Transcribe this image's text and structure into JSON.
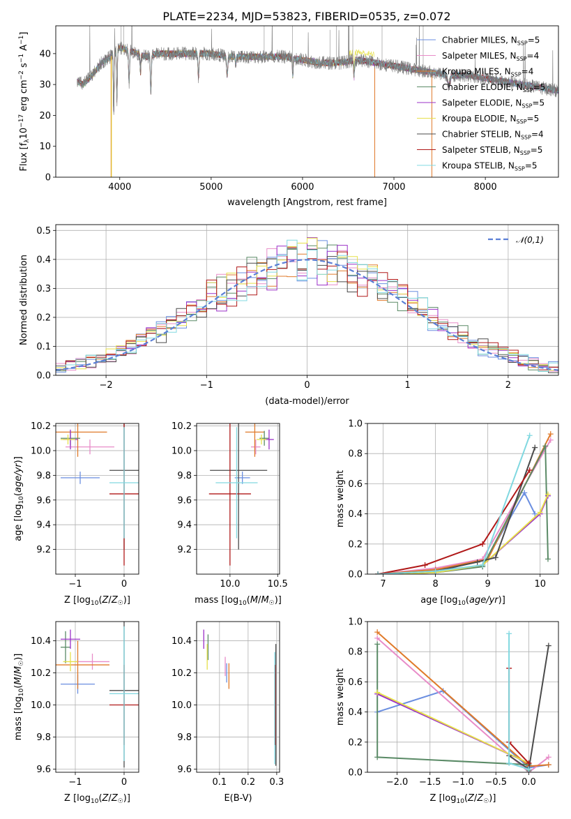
{
  "title": "PLATE=2234, MJD=53823, FIBERID=0535, z=0.072",
  "colors": {
    "Chabrier MILES": "#6a8ee0",
    "Salpeter MILES": "#e88cc8",
    "Kroupa MILES": "#e07a2a",
    "Chabrier ELODIE": "#5a8a66",
    "Salpeter ELODIE": "#9b30c8",
    "Kroupa ELODIE": "#e6e04a",
    "Chabrier STELIB": "#4a4a4a",
    "Salpeter STELIB": "#b01818",
    "Kroupa STELIB": "#80d8e0"
  },
  "chart_data": [
    {
      "id": "spectrum",
      "type": "line",
      "title": "PLATE=2234, MJD=53823, FIBERID=0535, z=0.072",
      "xlabel": "wavelength [Angstrom, rest frame]",
      "ylabel": "Flux [fλ10⁻¹⁷ erg cm⁻² s⁻¹ A⁻¹]",
      "xlim": [
        3300,
        8800
      ],
      "ylim": [
        0,
        49
      ],
      "xticks": [
        4000,
        5000,
        6000,
        7000,
        8000
      ],
      "yticks": [
        0,
        10,
        20,
        30,
        40
      ],
      "grid": false,
      "legend_position": "top-right",
      "continuum": {
        "x": [
          3530,
          3600,
          3700,
          3800,
          3900,
          4000,
          4100,
          4200,
          4300,
          4400,
          4500,
          4700,
          5000,
          5200,
          5500,
          5800,
          6000,
          6200,
          6400,
          6600,
          6800,
          7000,
          7200,
          7400,
          7600,
          7800,
          8000,
          8200,
          8400,
          8600,
          8800
        ],
        "y": [
          31,
          30,
          33,
          37,
          39,
          42,
          41,
          40,
          39,
          40,
          40,
          40,
          40,
          39,
          39,
          39,
          38,
          37,
          37,
          38,
          37,
          36,
          35,
          34,
          33,
          33,
          32,
          31,
          30,
          29,
          28
        ]
      },
      "series": [
        {
          "name": "Chabrier MILES, N_SSP=5",
          "legend_text": "Chabrier MILES, N",
          "sub": "SSP",
          "suffix": "=5",
          "color": "#6a8ee0"
        },
        {
          "name": "Salpeter MILES, N_SSP=4",
          "legend_text": "Salpeter MILES, N",
          "sub": "SSP",
          "suffix": "=4",
          "color": "#e88cc8"
        },
        {
          "name": "Kroupa MILES, N_SSP=4",
          "legend_text": "Kroupa MILES, N",
          "sub": "SSP",
          "suffix": "=4",
          "color": "#e07a2a"
        },
        {
          "name": "Chabrier ELODIE, N_SSP=5",
          "legend_text": "Chabrier ELODIE, N",
          "sub": "SSP",
          "suffix": "=5",
          "color": "#5a8a66"
        },
        {
          "name": "Salpeter ELODIE, N_SSP=5",
          "legend_text": "Salpeter ELODIE, N",
          "sub": "SSP",
          "suffix": "=5",
          "color": "#9b30c8"
        },
        {
          "name": "Kroupa ELODIE, N_SSP=5",
          "legend_text": "Kroupa ELODIE, N",
          "sub": "SSP",
          "suffix": "=5",
          "color": "#e6e04a"
        },
        {
          "name": "Chabrier STELIB, N_SSP=4",
          "legend_text": "Chabrier STELIB, N",
          "sub": "SSP",
          "suffix": "=4",
          "color": "#4a4a4a"
        },
        {
          "name": "Salpeter STELIB, N_SSP=5",
          "legend_text": "Salpeter STELIB, N",
          "sub": "SSP",
          "suffix": "=5",
          "color": "#b01818"
        },
        {
          "name": "Kroupa STELIB, N_SSP=5",
          "legend_text": "Kroupa STELIB, N",
          "sub": "SSP",
          "suffix": "=5",
          "color": "#80d8e0"
        }
      ]
    },
    {
      "id": "residuals",
      "type": "histogram",
      "xlabel": "(data-model)/error",
      "ylabel": "Normed distribution",
      "xlim": [
        -2.5,
        2.5
      ],
      "ylim": [
        0,
        0.52
      ],
      "xticks": [
        -2,
        -1,
        0,
        1,
        2
      ],
      "yticks": [
        0.0,
        0.1,
        0.2,
        0.3,
        0.4,
        0.5
      ],
      "grid": true,
      "legend_position": "top-right",
      "legend_label": "𝒩(0,1)",
      "reference": {
        "name": "N(0,1)",
        "mean": 0,
        "sigma": 1,
        "color": "#5b7fd6",
        "style": "dashed"
      },
      "bin_width": 0.1
    },
    {
      "id": "age_vs_Z",
      "type": "errorbar",
      "xlabel": "Z [log10(Z/Z☉)]",
      "ylabel": "age  [log10(age/yr)]",
      "xlim": [
        -1.4,
        0.3
      ],
      "ylim": [
        9.0,
        10.22
      ],
      "xticks": [
        -1,
        0
      ],
      "yticks": [
        9.2,
        9.4,
        9.6,
        9.8,
        10.0,
        10.2
      ],
      "grid": true,
      "points": [
        {
          "model": "Chabrier MILES",
          "x": -0.9,
          "xerr": 0.4,
          "y": 9.78,
          "yerr": 0.05
        },
        {
          "model": "Salpeter MILES",
          "x": -0.7,
          "xerr": 0.5,
          "y": 10.03,
          "yerr": 0.06
        },
        {
          "model": "Kroupa MILES",
          "x": -0.95,
          "xerr": 0.6,
          "y": 10.15,
          "yerr": 0.2
        },
        {
          "model": "Chabrier ELODIE",
          "x": -1.1,
          "xerr": 0.2,
          "y": 10.1,
          "yerr": 0.06
        },
        {
          "model": "Salpeter ELODIE",
          "x": -1.1,
          "xerr": 0.15,
          "y": 10.09,
          "yerr": 0.08
        },
        {
          "model": "Kroupa ELODIE",
          "x": -1.15,
          "xerr": 0.15,
          "y": 10.09,
          "yerr": 0.04
        },
        {
          "model": "Chabrier STELIB",
          "x": 0.0,
          "xerr": 0.3,
          "y": 9.84,
          "yerr": 0.64
        },
        {
          "model": "Salpeter STELIB",
          "x": 0.0,
          "xerr": 0.3,
          "y": 9.65,
          "yerr": 0.58
        },
        {
          "model": "Kroupa STELIB",
          "x": 0.0,
          "xerr": 0.3,
          "y": 9.74,
          "yerr": 0.45
        }
      ]
    },
    {
      "id": "age_vs_mass",
      "type": "errorbar",
      "xlabel": "mass [log10(M/M☉)]",
      "ylabel": "",
      "xlim": [
        9.65,
        10.52
      ],
      "ylim": [
        9.0,
        10.22
      ],
      "xticks": [
        10.0,
        10.5
      ],
      "yticks": [
        9.2,
        9.4,
        9.6,
        9.8,
        10.0,
        10.2
      ],
      "grid": true,
      "points": [
        {
          "model": "Chabrier MILES",
          "x": 10.13,
          "xerr": 0.08,
          "y": 9.78,
          "yerr": 0.05
        },
        {
          "model": "Salpeter MILES",
          "x": 10.27,
          "xerr": 0.05,
          "y": 10.03,
          "yerr": 0.06
        },
        {
          "model": "Kroupa MILES",
          "x": 10.26,
          "xerr": 0.1,
          "y": 10.15,
          "yerr": 0.2
        },
        {
          "model": "Chabrier ELODIE",
          "x": 10.36,
          "xerr": 0.05,
          "y": 10.1,
          "yerr": 0.06
        },
        {
          "model": "Salpeter ELODIE",
          "x": 10.41,
          "xerr": 0.05,
          "y": 10.09,
          "yerr": 0.08
        },
        {
          "model": "Kroupa ELODIE",
          "x": 10.33,
          "xerr": 0.05,
          "y": 10.09,
          "yerr": 0.04
        },
        {
          "model": "Chabrier STELIB",
          "x": 10.09,
          "xerr": 0.3,
          "y": 9.84,
          "yerr": 0.64
        },
        {
          "model": "Salpeter STELIB",
          "x": 10.0,
          "xerr": 0.22,
          "y": 9.65,
          "yerr": 0.58
        },
        {
          "model": "Kroupa STELIB",
          "x": 10.07,
          "xerr": 0.22,
          "y": 9.74,
          "yerr": 0.45
        }
      ]
    },
    {
      "id": "weight_vs_age",
      "type": "line",
      "xlabel": "age  [log10(age/yr)]",
      "ylabel": "mass weight",
      "xlim": [
        6.7,
        10.35
      ],
      "ylim": [
        0,
        1
      ],
      "xticks": [
        7,
        8,
        9,
        10
      ],
      "yticks": [
        0.0,
        0.2,
        0.4,
        0.6,
        0.8,
        1.0
      ],
      "grid": true,
      "series": [
        {
          "model": "Chabrier MILES",
          "x": [
            6.9,
            8.0,
            8.9,
            9.7,
            9.9
          ],
          "y": [
            0.0,
            0.03,
            0.05,
            0.54,
            0.4
          ]
        },
        {
          "model": "Salpeter MILES",
          "x": [
            6.9,
            8.0,
            8.9,
            10.2
          ],
          "y": [
            0.0,
            0.04,
            0.1,
            0.89
          ]
        },
        {
          "model": "Kroupa MILES",
          "x": [
            6.9,
            8.0,
            9.0,
            10.2
          ],
          "y": [
            0.0,
            0.03,
            0.1,
            0.93
          ]
        },
        {
          "model": "Chabrier ELODIE",
          "x": [
            6.9,
            8.0,
            8.9,
            10.1,
            10.15
          ],
          "y": [
            0.0,
            0.01,
            0.05,
            0.85,
            0.1
          ]
        },
        {
          "model": "Salpeter ELODIE",
          "x": [
            6.9,
            8.0,
            8.9,
            10.0,
            10.15
          ],
          "y": [
            0.0,
            0.01,
            0.06,
            0.4,
            0.52
          ]
        },
        {
          "model": "Kroupa ELODIE",
          "x": [
            6.9,
            8.0,
            8.9,
            10.0,
            10.15
          ],
          "y": [
            0.0,
            0.01,
            0.06,
            0.41,
            0.53
          ]
        },
        {
          "model": "Chabrier STELIB",
          "x": [
            6.9,
            8.0,
            8.8,
            9.15,
            9.9
          ],
          "y": [
            0.0,
            0.02,
            0.08,
            0.11,
            0.84
          ]
        },
        {
          "model": "Salpeter STELIB",
          "x": [
            6.9,
            7.8,
            8.9,
            9.8
          ],
          "y": [
            0.0,
            0.06,
            0.2,
            0.69
          ]
        },
        {
          "model": "Kroupa STELIB",
          "x": [
            6.9,
            8.0,
            8.9,
            9.8
          ],
          "y": [
            0.0,
            0.02,
            0.06,
            0.92
          ]
        }
      ]
    },
    {
      "id": "mass_vs_Z",
      "type": "errorbar",
      "xlabel": "Z [log10(Z/Z☉)]",
      "ylabel": "mass [log10(M/M☉)]",
      "xlim": [
        -1.4,
        0.3
      ],
      "ylim": [
        9.58,
        10.52
      ],
      "xticks": [
        -1,
        0
      ],
      "yticks": [
        9.6,
        9.8,
        10.0,
        10.2,
        10.4
      ],
      "grid": true,
      "points": [
        {
          "model": "Chabrier MILES",
          "x": -0.95,
          "xerr": 0.35,
          "y": 10.13,
          "yerr": 0.06
        },
        {
          "model": "Salpeter MILES",
          "x": -0.65,
          "xerr": 0.35,
          "y": 10.27,
          "yerr": 0.05
        },
        {
          "model": "Kroupa MILES",
          "x": -0.95,
          "xerr": 0.65,
          "y": 10.25,
          "yerr": 0.15
        },
        {
          "model": "Chabrier ELODIE",
          "x": -1.2,
          "xerr": 0.1,
          "y": 10.36,
          "yerr": 0.1
        },
        {
          "model": "Salpeter ELODIE",
          "x": -1.1,
          "xerr": 0.2,
          "y": 10.41,
          "yerr": 0.06
        },
        {
          "model": "Kroupa ELODIE",
          "x": -1.1,
          "xerr": 0.15,
          "y": 10.27,
          "yerr": 0.06
        },
        {
          "model": "Chabrier STELIB",
          "x": 0.0,
          "xerr": 0.3,
          "y": 10.09,
          "yerr": 0.48
        },
        {
          "model": "Salpeter STELIB",
          "x": 0.0,
          "xerr": 0.3,
          "y": 10.0,
          "yerr": 0.25
        },
        {
          "model": "Kroupa STELIB",
          "x": 0.0,
          "xerr": 0.3,
          "y": 10.07,
          "yerr": 0.42
        }
      ]
    },
    {
      "id": "mass_vs_EBV",
      "type": "errorbar",
      "xlabel": "E(B-V)",
      "ylabel": "",
      "xlim": [
        0.02,
        0.31
      ],
      "ylim": [
        9.58,
        10.52
      ],
      "xticks": [
        0.1,
        0.2,
        0.3
      ],
      "yticks": [
        9.6,
        9.8,
        10.0,
        10.2,
        10.4
      ],
      "grid": true,
      "points": [
        {
          "model": "Chabrier MILES",
          "x": 0.125,
          "y": 10.2,
          "yerr": 0.06
        },
        {
          "model": "Salpeter MILES",
          "x": 0.12,
          "y": 10.24,
          "yerr": 0.06
        },
        {
          "model": "Kroupa MILES",
          "x": 0.133,
          "y": 10.18,
          "yerr": 0.08
        },
        {
          "model": "Chabrier ELODIE",
          "x": 0.06,
          "y": 10.36,
          "yerr": 0.08
        },
        {
          "model": "Salpeter ELODIE",
          "x": 0.045,
          "y": 10.41,
          "yerr": 0.06
        },
        {
          "model": "Kroupa ELODIE",
          "x": 0.057,
          "y": 10.3,
          "yerr": 0.08
        },
        {
          "model": "Chabrier STELIB",
          "x": 0.297,
          "y": 10.0,
          "yerr": 0.38
        },
        {
          "model": "Salpeter STELIB",
          "x": 0.295,
          "y": 10.0,
          "yerr": 0.25
        },
        {
          "model": "Kroupa STELIB",
          "x": 0.293,
          "y": 9.98,
          "yerr": 0.35
        }
      ]
    },
    {
      "id": "weight_vs_Z",
      "type": "line",
      "xlabel": "Z [log10(Z/Z☉)]",
      "ylabel": "mass weight",
      "xlim": [
        -2.45,
        0.45
      ],
      "ylim": [
        0,
        1
      ],
      "xticks": [
        -2.0,
        -1.5,
        -1.0,
        -0.5,
        0.0
      ],
      "yticks": [
        0.0,
        0.2,
        0.4,
        0.6,
        0.8,
        1.0
      ],
      "grid": true,
      "series": [
        {
          "model": "Chabrier MILES",
          "x": [
            -2.3,
            -1.3,
            0.0,
            0.3
          ],
          "y": [
            0.4,
            0.54,
            0.03,
            0.05
          ]
        },
        {
          "model": "Salpeter MILES",
          "x": [
            -2.3,
            0.0,
            0.3
          ],
          "y": [
            0.89,
            0.0,
            0.1
          ]
        },
        {
          "model": "Kroupa MILES",
          "x": [
            -2.3,
            0.0,
            0.3
          ],
          "y": [
            0.93,
            0.04,
            0.05
          ]
        },
        {
          "model": "Chabrier ELODIE",
          "x": [
            -2.3,
            -2.3,
            0.0,
            0.0
          ],
          "y": [
            0.85,
            0.1,
            0.05,
            0.01
          ]
        },
        {
          "model": "Salpeter ELODIE",
          "x": [
            -2.3,
            0.0
          ],
          "y": [
            0.52,
            0.06
          ]
        },
        {
          "model": "Kroupa ELODIE",
          "x": [
            -2.3,
            0.0
          ],
          "y": [
            0.53,
            0.06
          ]
        },
        {
          "model": "Chabrier STELIB",
          "x": [
            -0.3,
            0.0,
            0.3
          ],
          "y": [
            0.11,
            0.02,
            0.84
          ]
        },
        {
          "model": "Salpeter STELIB",
          "x": [
            -0.3,
            -0.3,
            0.0
          ],
          "y": [
            0.69,
            0.2,
            0.06
          ]
        },
        {
          "model": "Kroupa STELIB",
          "x": [
            -0.3,
            -0.3,
            0.0
          ],
          "y": [
            0.92,
            0.06,
            0.02
          ]
        }
      ]
    }
  ]
}
